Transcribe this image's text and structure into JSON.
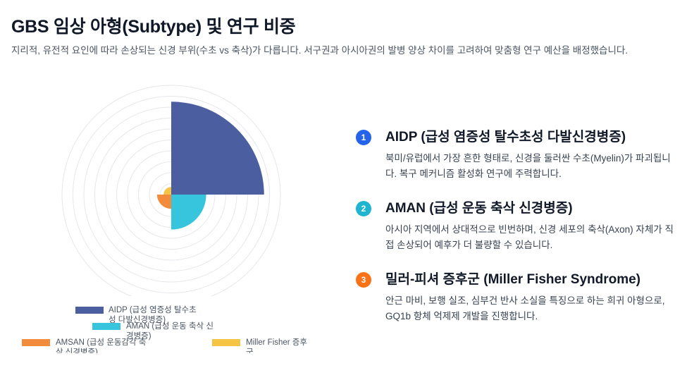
{
  "page": {
    "title": "GBS 임상 아형(Subtype) 및 연구 비중",
    "subtitle": "지리적, 유전적 요인에 따라 손상되는 신경 부위(수초 vs 축삭)가 다릅니다. 서구권과 아시아권의 발병 양상 차이를 고려하여 맞춤형 연구 예산을 배정했습니다."
  },
  "chart_data": {
    "type": "polar-area",
    "categories": [
      "AIDP (급성 염증성 탈수초성 다발신경병증)",
      "AMAN (급성 운동 축삭 신경병증)",
      "AMSAN (급성 운동감각 축삭 신경병증)",
      "Miller Fisher 증후군"
    ],
    "values": [
      85,
      32,
      13,
      7
    ],
    "rmax": 100,
    "rings": 10,
    "colors": [
      "#4b5e9f",
      "#36c5dc",
      "#f28c3c",
      "#f6c445"
    ],
    "legend_position": "bottom"
  },
  "items": [
    {
      "num": "1",
      "color": "#2563eb",
      "title": "AIDP (급성 염증성 탈수초성 다발신경병증)",
      "desc": "북미/유럽에서 가장 흔한 형태로, 신경을 둘러싼 수초(Myelin)가 파괴됩니다. 복구 메커니즘 활성화 연구에 주력합니다."
    },
    {
      "num": "2",
      "color": "#1fb5d0",
      "title": "AMAN (급성 운동 축삭 신경병증)",
      "desc": "아시아 지역에서 상대적으로 빈번하며, 신경 세포의 축삭(Axon) 자체가 직접 손상되어 예후가 더 불량할 수 있습니다."
    },
    {
      "num": "3",
      "color": "#f97316",
      "title": "밀러-피셔 증후군 (Miller Fisher Syndrome)",
      "desc": "안근 마비, 보행 실조, 심부건 반사 소실을 특징으로 하는 희귀 아형으로, GQ1b 항체 억제제 개발을 진행합니다."
    }
  ]
}
